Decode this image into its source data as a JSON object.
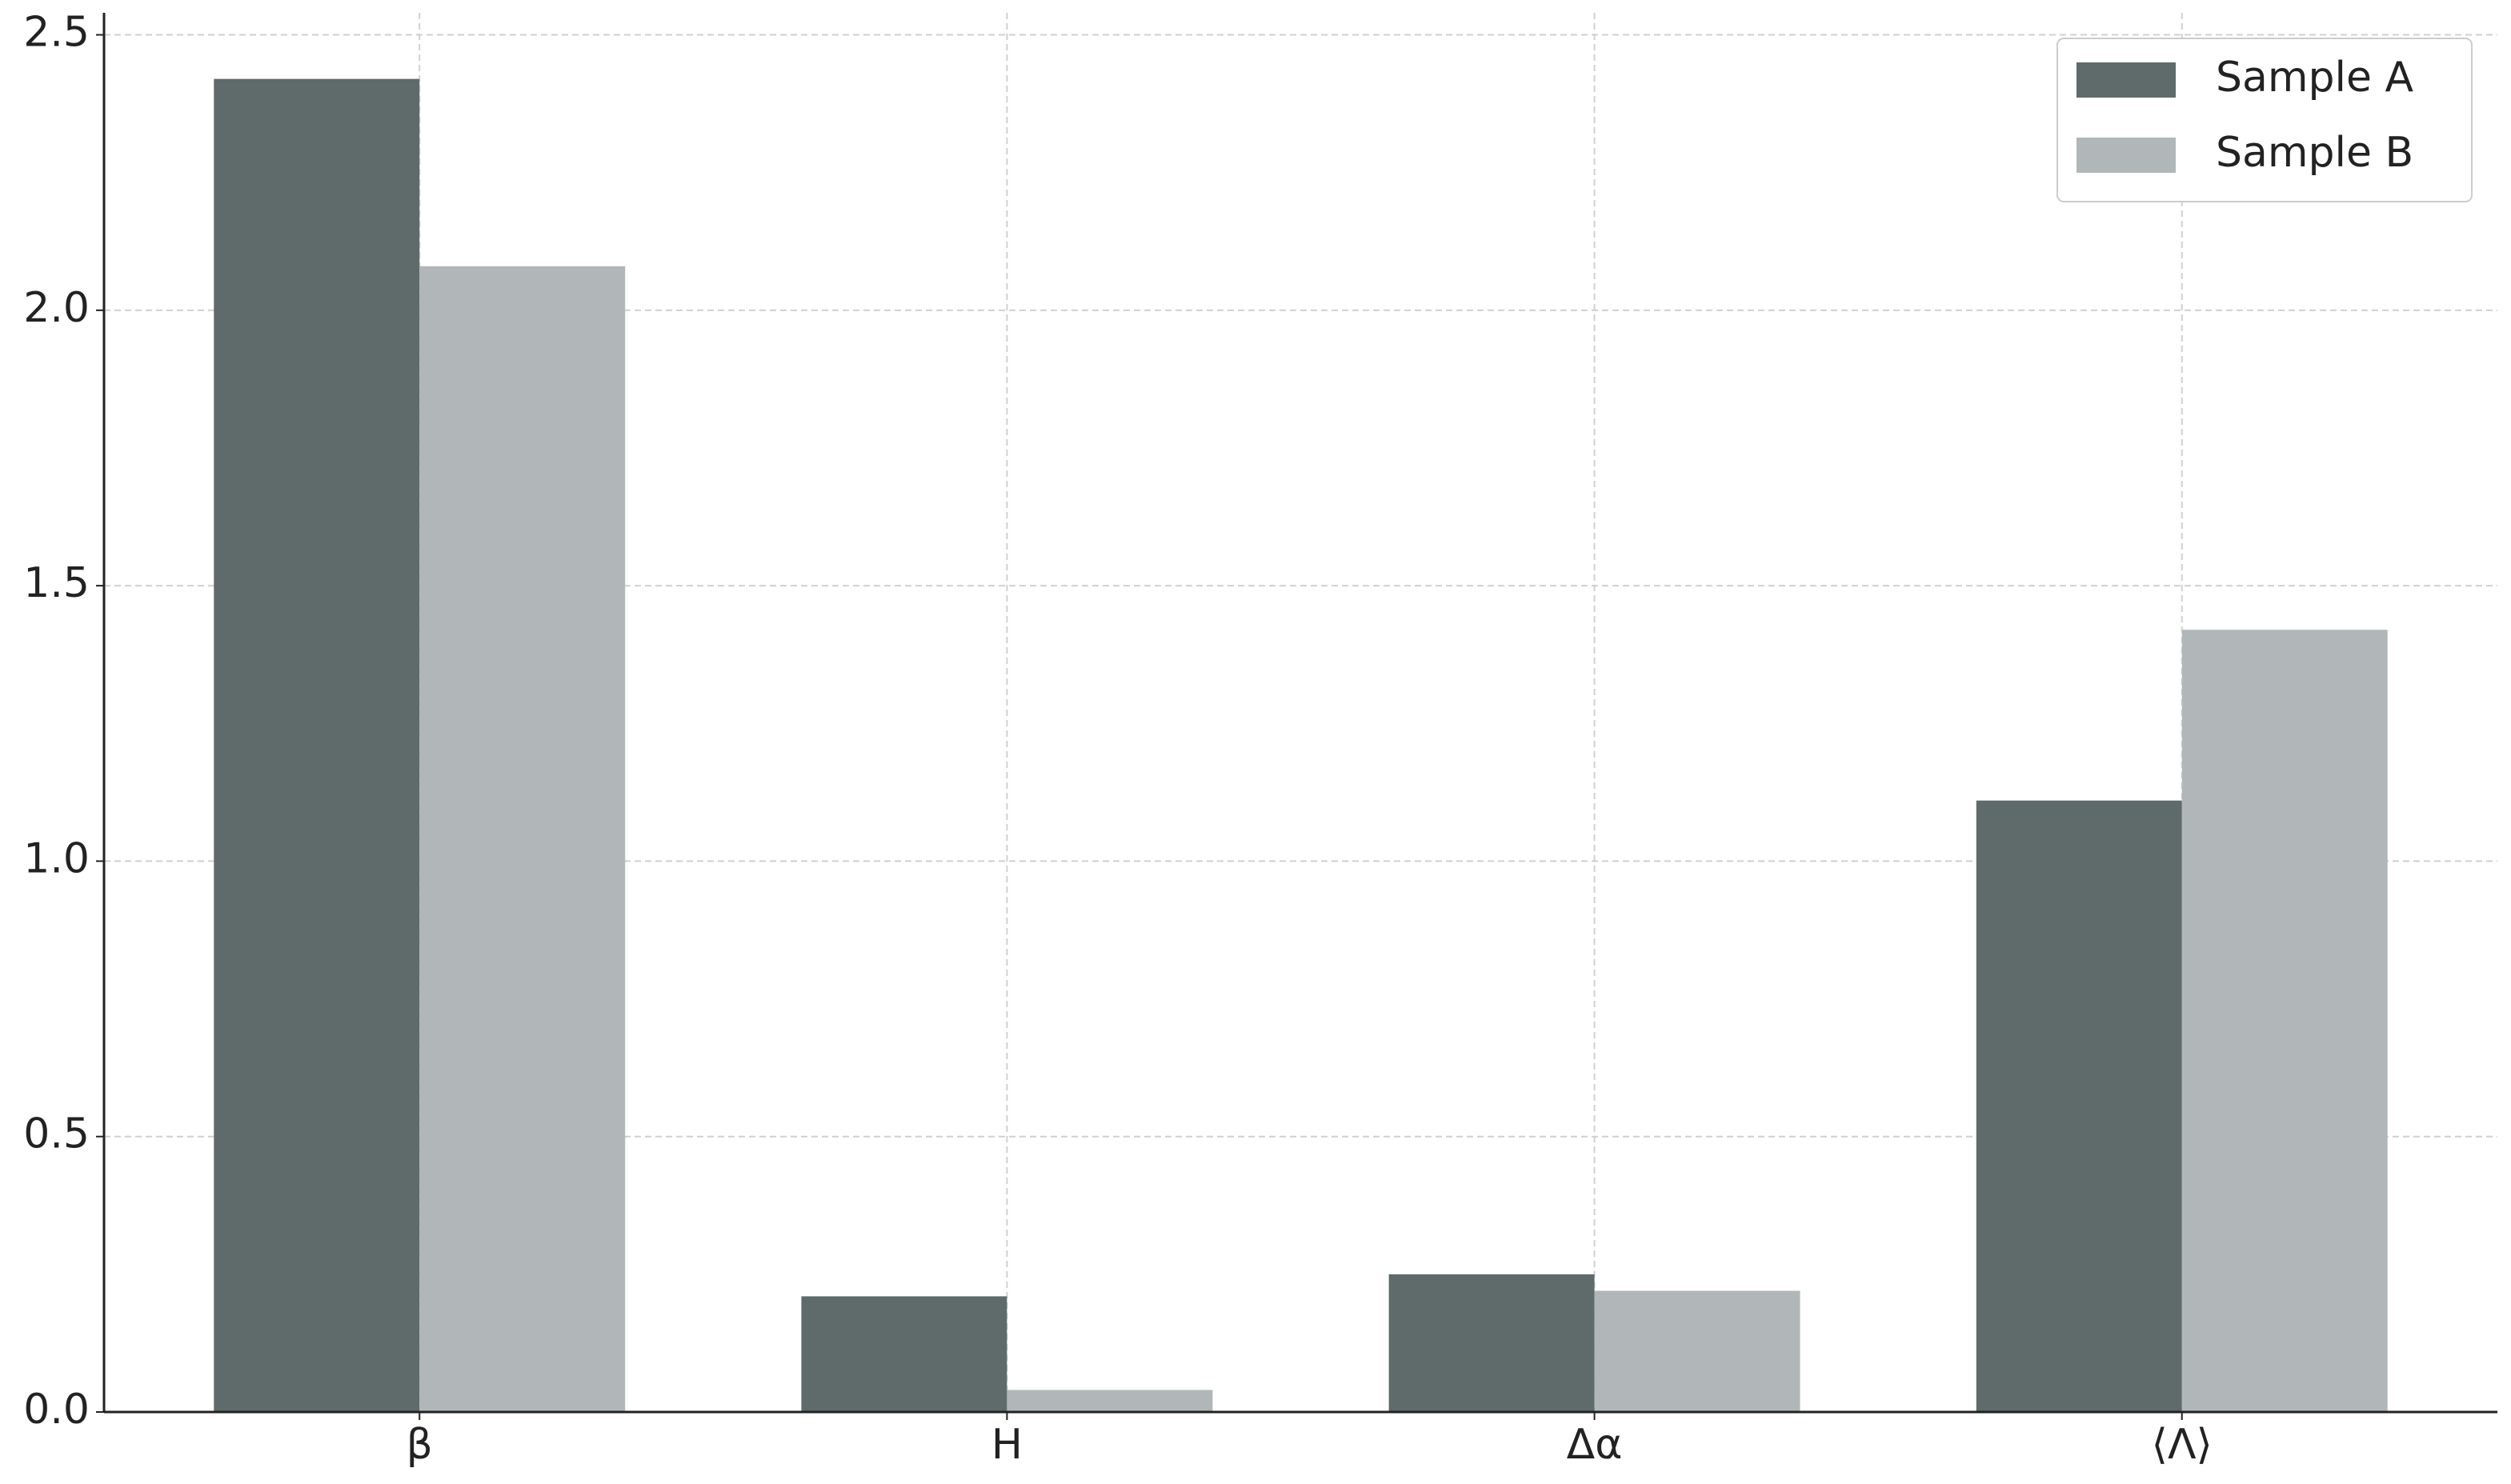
{
  "chart_data": {
    "type": "bar",
    "categories": [
      "β",
      "H",
      "Δα",
      "⟨Λ⟩"
    ],
    "series": [
      {
        "name": "Sample A",
        "color": "#5f6b6a",
        "values": [
          2.42,
          0.21,
          0.25,
          1.11
        ]
      },
      {
        "name": "Sample B",
        "color": "#b1b7b8",
        "values": [
          2.08,
          0.04,
          0.22,
          1.42
        ]
      }
    ],
    "ylim": [
      0,
      2.54
    ],
    "yticks": [
      {
        "value": 0,
        "label": "0.0"
      },
      0.5,
      {
        "value": 1,
        "label": "1.0"
      },
      1.5,
      {
        "value": 2,
        "label": "2.0"
      },
      2.5
    ],
    "grid": true,
    "legend": "upper right"
  }
}
